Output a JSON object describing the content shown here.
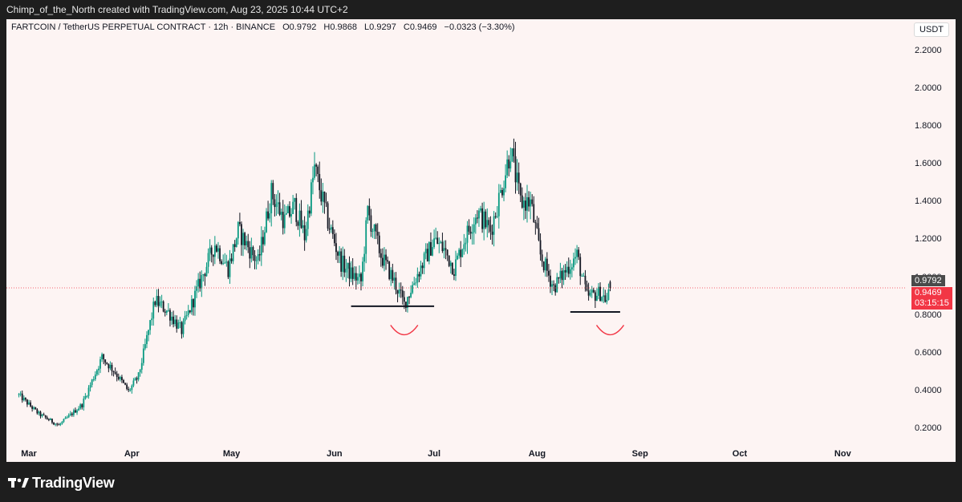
{
  "header": {
    "credit": "Chimp_of_the_North created with TradingView.com, Aug 23, 2025 10:44 UTC+2"
  },
  "legend": {
    "symbol": "FARTCOIN / TetherUS PERPETUAL CONTRACT · 12h · BINANCE",
    "open": "O0.9792",
    "high": "H0.9868",
    "low": "L0.9297",
    "close": "C0.9469",
    "change": "−0.0323 (−3.30%)"
  },
  "currency": "USDT",
  "price_labels": {
    "prev": "0.9792",
    "last": "0.9469",
    "countdown": "03:15:15"
  },
  "footer": {
    "brand": "TradingView",
    "logo_icon": "tradingview-logo-icon"
  },
  "colors": {
    "up": "#089981",
    "down": "#131722",
    "marker": "#f23645",
    "background": "#fdf4f3"
  },
  "chart_data": {
    "type": "candlestick",
    "interval": "12h",
    "ylim": [
      0.12,
      2.3
    ],
    "y_ticks": [
      "2.2000",
      "2.0000",
      "1.8000",
      "1.6000",
      "1.4000",
      "1.2000",
      "1.0000",
      "0.8000",
      "0.6000",
      "0.4000",
      "0.2000"
    ],
    "x_ticks": [
      "Mar",
      "Apr",
      "May",
      "Jun",
      "Jul",
      "Aug",
      "Sep",
      "Oct",
      "Nov"
    ],
    "anchors": [
      [
        "2025-02-26",
        0.38
      ],
      [
        "2025-03-04",
        0.28
      ],
      [
        "2025-03-10",
        0.22
      ],
      [
        "2025-03-17",
        0.33
      ],
      [
        "2025-03-23",
        0.58
      ],
      [
        "2025-03-27",
        0.5
      ],
      [
        "2025-03-31",
        0.4
      ],
      [
        "2025-04-03",
        0.48
      ],
      [
        "2025-04-08",
        0.88
      ],
      [
        "2025-04-12",
        0.82
      ],
      [
        "2025-04-16",
        0.72
      ],
      [
        "2025-04-22",
        1.0
      ],
      [
        "2025-04-26",
        1.18
      ],
      [
        "2025-04-30",
        1.05
      ],
      [
        "2025-05-03",
        1.25
      ],
      [
        "2025-05-09",
        1.08
      ],
      [
        "2025-05-13",
        1.45
      ],
      [
        "2025-05-17",
        1.3
      ],
      [
        "2025-05-20",
        1.38
      ],
      [
        "2025-05-23",
        1.22
      ],
      [
        "2025-05-26",
        1.58
      ],
      [
        "2025-05-30",
        1.3
      ],
      [
        "2025-06-03",
        1.08
      ],
      [
        "2025-06-06",
        1.02
      ],
      [
        "2025-06-09",
        0.98
      ],
      [
        "2025-06-11",
        1.35
      ],
      [
        "2025-06-15",
        1.12
      ],
      [
        "2025-06-19",
        0.98
      ],
      [
        "2025-06-22",
        0.86
      ],
      [
        "2025-06-26",
        1.02
      ],
      [
        "2025-07-01",
        1.2
      ],
      [
        "2025-07-04",
        1.15
      ],
      [
        "2025-07-07",
        1.05
      ],
      [
        "2025-07-10",
        1.2
      ],
      [
        "2025-07-14",
        1.35
      ],
      [
        "2025-07-18",
        1.25
      ],
      [
        "2025-07-21",
        1.45
      ],
      [
        "2025-07-24",
        1.68
      ],
      [
        "2025-07-27",
        1.4
      ],
      [
        "2025-07-30",
        1.4
      ],
      [
        "2025-08-02",
        1.12
      ],
      [
        "2025-08-06",
        0.95
      ],
      [
        "2025-08-10",
        1.05
      ],
      [
        "2025-08-13",
        1.12
      ],
      [
        "2025-08-16",
        0.9
      ],
      [
        "2025-08-20",
        0.92
      ],
      [
        "2025-08-22",
        0.88
      ],
      [
        "2025-08-23",
        0.95
      ]
    ],
    "last": {
      "open": 0.9792,
      "high": 0.9868,
      "low": 0.9297,
      "close": 0.9469
    },
    "current_price": 0.9469,
    "annotations": {
      "support_lines": [
        {
          "from": "2025-06-06",
          "to": "2025-07-01",
          "price": 0.85
        },
        {
          "from": "2025-08-11",
          "to": "2025-08-26",
          "price": 0.82
        }
      ],
      "smile_marks": [
        {
          "date": "2025-06-22"
        },
        {
          "date": "2025-08-23"
        }
      ]
    }
  }
}
